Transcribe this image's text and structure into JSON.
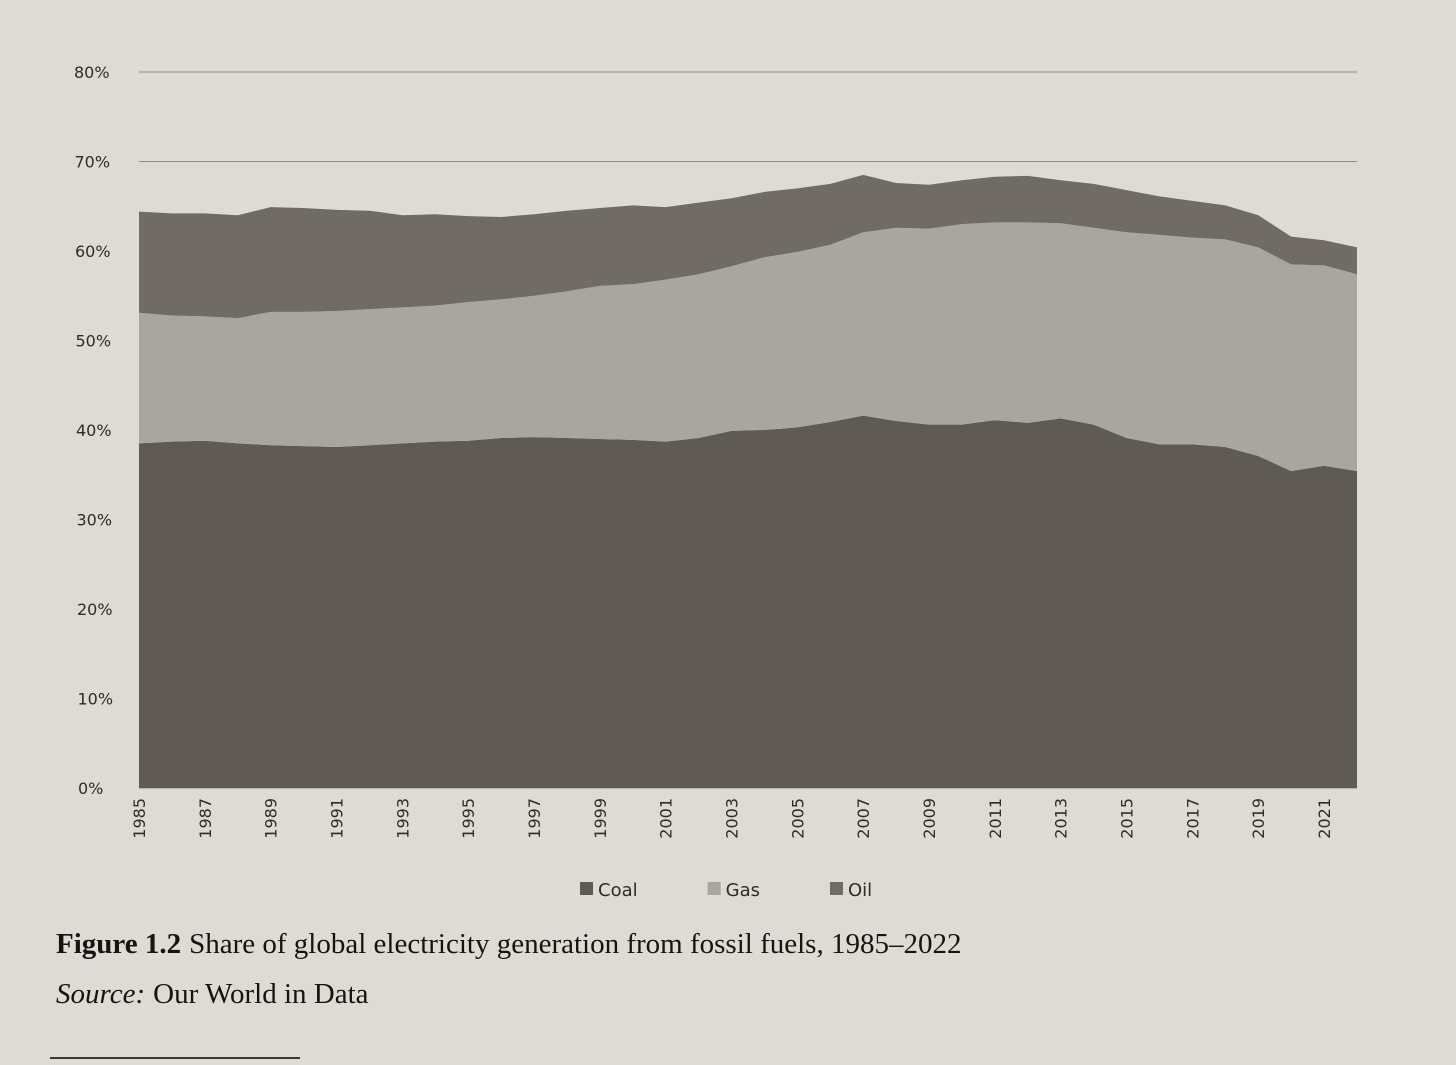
{
  "chart_data": {
    "type": "stacked-area",
    "figure_label": "Figure 1.2",
    "title": "Share of global electricity generation from fossil fuels, 1985–2022",
    "source_label": "Source:",
    "source": "Our World in Data",
    "x": [
      1985,
      1986,
      1987,
      1988,
      1989,
      1990,
      1991,
      1992,
      1993,
      1994,
      1995,
      1996,
      1997,
      1998,
      1999,
      2000,
      2001,
      2002,
      2003,
      2004,
      2005,
      2006,
      2007,
      2008,
      2009,
      2010,
      2011,
      2012,
      2013,
      2014,
      2015,
      2016,
      2017,
      2018,
      2019,
      2020,
      2021,
      2022
    ],
    "xlim": [
      1985,
      2022
    ],
    "xticks": [
      1985,
      1987,
      1989,
      1991,
      1993,
      1995,
      1997,
      1999,
      2001,
      2003,
      2005,
      2007,
      2009,
      2011,
      2013,
      2015,
      2017,
      2019,
      2021
    ],
    "ylim": [
      0,
      80
    ],
    "yticks": [
      {
        "value": 0,
        "label": "0%"
      },
      {
        "value": 10,
        "label": "10%"
      },
      {
        "value": 20,
        "label": "20%"
      },
      {
        "value": 30,
        "label": "30%"
      },
      {
        "value": 40,
        "label": "40%"
      },
      {
        "value": 50,
        "label": "50%"
      },
      {
        "value": 60,
        "label": "60%"
      },
      {
        "value": 70,
        "label": "70%"
      },
      {
        "value": 80,
        "label": "80%"
      }
    ],
    "grid": true,
    "legend": "bottom",
    "series": [
      {
        "name": "Coal",
        "color": "#5f5a56",
        "values": [
          38.5,
          38.7,
          38.8,
          38.5,
          38.3,
          38.2,
          38.1,
          38.3,
          38.5,
          38.7,
          38.8,
          39.1,
          39.2,
          39.1,
          39.0,
          38.9,
          38.7,
          39.1,
          39.9,
          40.0,
          40.3,
          40.9,
          41.6,
          41.0,
          40.6,
          40.6,
          41.1,
          40.8,
          41.3,
          40.6,
          39.1,
          38.4,
          38.4,
          38.1,
          37.1,
          35.4,
          36.0,
          35.4
        ]
      },
      {
        "name": "Gas",
        "color": "#a9a5a0",
        "values": [
          14.6,
          14.1,
          13.9,
          14.0,
          14.9,
          15.0,
          15.2,
          15.2,
          15.2,
          15.2,
          15.5,
          15.5,
          15.8,
          16.4,
          17.1,
          17.4,
          18.1,
          18.3,
          18.4,
          19.3,
          19.6,
          19.8,
          20.5,
          21.6,
          21.9,
          22.4,
          22.1,
          22.4,
          21.8,
          22.0,
          23.0,
          23.4,
          23.1,
          23.2,
          23.3,
          23.1,
          22.4,
          22.0
        ]
      },
      {
        "name": "Oil",
        "color": "#706b67",
        "values": [
          11.3,
          11.4,
          11.5,
          11.5,
          11.7,
          11.6,
          11.3,
          11.0,
          10.3,
          10.2,
          9.6,
          9.2,
          9.1,
          9.0,
          8.7,
          8.8,
          8.1,
          8.0,
          7.6,
          7.3,
          7.1,
          6.8,
          6.4,
          5.0,
          4.9,
          4.9,
          5.1,
          5.2,
          4.8,
          4.9,
          4.7,
          4.3,
          4.1,
          3.8,
          3.6,
          3.1,
          2.8,
          3.0
        ]
      }
    ]
  }
}
